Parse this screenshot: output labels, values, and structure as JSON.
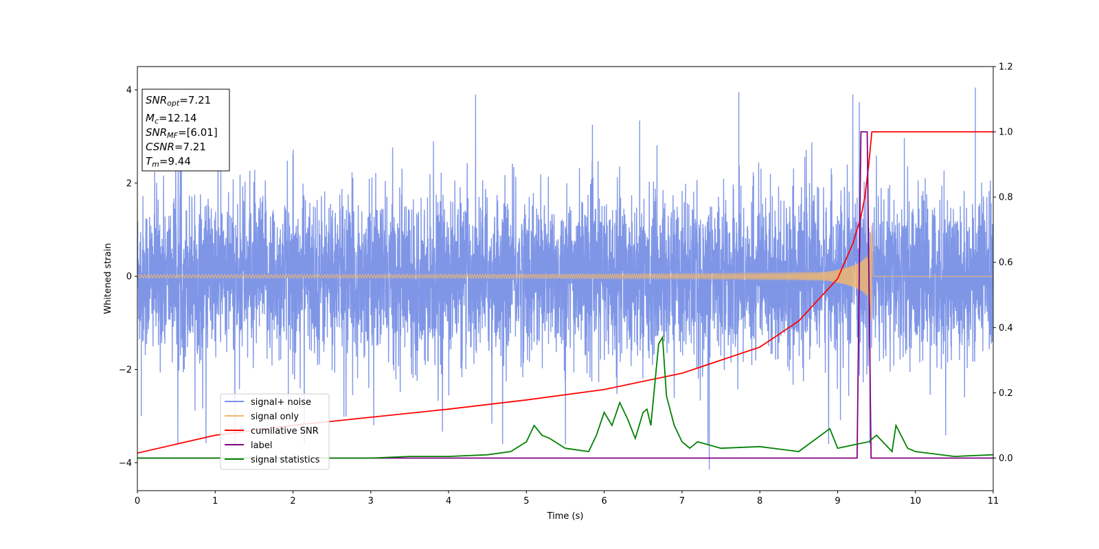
{
  "chart_data": {
    "type": "line",
    "title": "",
    "xlabel": "Time (s)",
    "ylabel": "Whitened strain",
    "xlim": [
      0,
      11
    ],
    "ylim": [
      -4.6,
      4.5
    ],
    "y2lim": [
      -0.1,
      1.2
    ],
    "xticks": [
      "0",
      "1",
      "2",
      "3",
      "4",
      "5",
      "6",
      "7",
      "8",
      "9",
      "10",
      "11"
    ],
    "yticks": [
      "-4",
      "-2",
      "0",
      "2",
      "4"
    ],
    "y2ticks": [
      "0.0",
      "0.2",
      "0.4",
      "0.6",
      "0.8",
      "1.0",
      "1.2"
    ],
    "grid": false,
    "legend_position": "lower-left",
    "info_box": {
      "snr_opt": {
        "sym": "SNR",
        "sub": "opt",
        "value": "=7.21"
      },
      "mc": {
        "sym": "M",
        "sub": "c",
        "value": "=12.14"
      },
      "snr_mf": {
        "sym": "SNR",
        "sub": "MF",
        "value": "=[6.01]"
      },
      "csnr": {
        "sym": "CSNR",
        "sub": "",
        "value": "=7.21"
      },
      "tm": {
        "sym": "T",
        "sub": "m",
        "value": "=9.44"
      }
    },
    "series": [
      {
        "name": "signal+ noise",
        "color": "#7890e6",
        "axis": "left",
        "description_amplitude": 1.4,
        "peak_extremes": [
          4.05,
          -4.15
        ]
      },
      {
        "name": "signal only",
        "color": "#f5b869",
        "axis": "left",
        "chirp_end_time": 9.44,
        "max_amplitude": 1.2
      },
      {
        "name": "cumilative SNR",
        "color": "#ff0000",
        "axis": "right",
        "x": [
          0,
          1,
          2,
          3,
          4,
          5,
          6,
          7,
          8,
          8.5,
          9,
          9.2,
          9.3,
          9.35,
          9.4,
          9.44,
          11
        ],
        "y": [
          0.015,
          0.07,
          0.1,
          0.125,
          0.15,
          0.178,
          0.21,
          0.26,
          0.34,
          0.42,
          0.55,
          0.66,
          0.74,
          0.8,
          0.9,
          1.0,
          1.0
        ]
      },
      {
        "name": "label",
        "color": "#800080",
        "axis": "right",
        "x": [
          0,
          9.25,
          9.3,
          9.38,
          9.43,
          11
        ],
        "y": [
          0,
          0,
          1.0,
          1.0,
          0,
          0
        ]
      },
      {
        "name": "signal statistics",
        "color": "#008000",
        "axis": "right",
        "x": [
          0,
          1,
          2,
          3,
          3.5,
          4,
          4.5,
          4.8,
          5.0,
          5.1,
          5.2,
          5.3,
          5.5,
          5.8,
          5.9,
          6.0,
          6.1,
          6.2,
          6.3,
          6.4,
          6.5,
          6.55,
          6.6,
          6.7,
          6.75,
          6.8,
          6.9,
          7.0,
          7.1,
          7.2,
          7.5,
          8.0,
          8.5,
          8.9,
          9.0,
          9.2,
          9.4,
          9.5,
          9.7,
          9.75,
          9.9,
          10.0,
          10.5,
          11
        ],
        "y": [
          0.0,
          0.0,
          0.0,
          0.0,
          0.005,
          0.005,
          0.01,
          0.02,
          0.05,
          0.1,
          0.07,
          0.06,
          0.03,
          0.02,
          0.07,
          0.14,
          0.1,
          0.17,
          0.12,
          0.06,
          0.14,
          0.15,
          0.1,
          0.35,
          0.37,
          0.19,
          0.1,
          0.05,
          0.03,
          0.05,
          0.03,
          0.035,
          0.02,
          0.09,
          0.03,
          0.04,
          0.05,
          0.07,
          0.02,
          0.1,
          0.03,
          0.02,
          0.005,
          0.01
        ]
      }
    ]
  }
}
